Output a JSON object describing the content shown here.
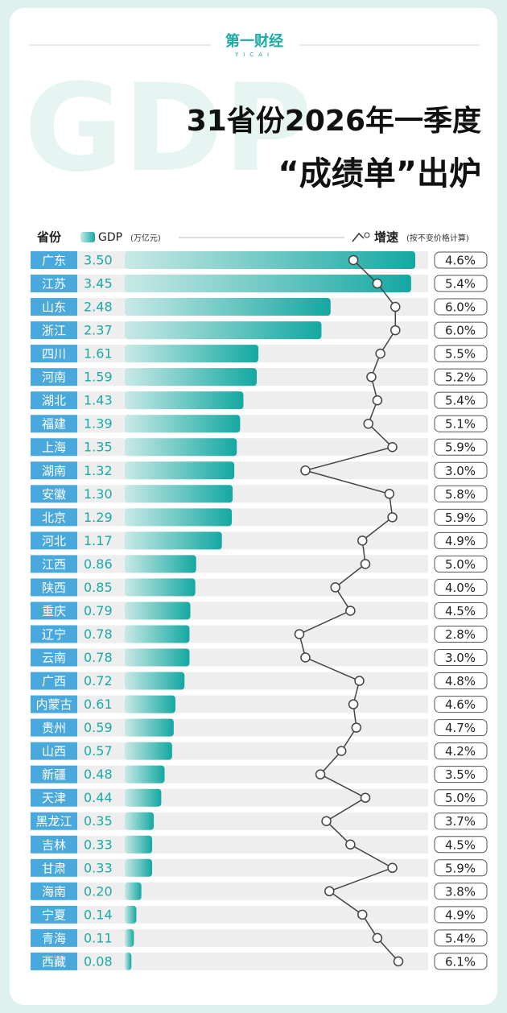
{
  "chart_data": {
    "type": "bar",
    "logo": "第一财经",
    "logo_sub": "YICAI",
    "watermark": "GDP",
    "title": "31省份2026年一季度",
    "subtitle": "“成绩单”出炉",
    "category_header": "省份",
    "categories": [
      "广东",
      "江苏",
      "山东",
      "浙江",
      "四川",
      "河南",
      "湖北",
      "福建",
      "上海",
      "湖南",
      "安徽",
      "北京",
      "河北",
      "江西",
      "陕西",
      "重庆",
      "辽宁",
      "云南",
      "广西",
      "内蒙古",
      "贵州",
      "山西",
      "新疆",
      "天津",
      "黑龙江",
      "吉林",
      "甘肃",
      "海南",
      "宁夏",
      "青海",
      "西藏"
    ],
    "series": [
      {
        "name": "GDP",
        "unit": "(万亿元)",
        "color": "#1aaba5",
        "values": [
          3.5,
          3.45,
          2.48,
          2.37,
          1.61,
          1.59,
          1.43,
          1.39,
          1.35,
          1.32,
          1.3,
          1.29,
          1.17,
          0.86,
          0.85,
          0.79,
          0.78,
          0.78,
          0.72,
          0.61,
          0.59,
          0.57,
          0.48,
          0.44,
          0.35,
          0.33,
          0.33,
          0.2,
          0.14,
          0.11,
          0.08
        ],
        "value_labels": [
          "3.50",
          "3.45",
          "2.48",
          "2.37",
          "1.61",
          "1.59",
          "1.43",
          "1.39",
          "1.35",
          "1.32",
          "1.30",
          "1.29",
          "1.17",
          "0.86",
          "0.85",
          "0.79",
          "0.78",
          "0.78",
          "0.72",
          "0.61",
          "0.59",
          "0.57",
          "0.48",
          "0.44",
          "0.35",
          "0.33",
          "0.33",
          "0.20",
          "0.14",
          "0.11",
          "0.08"
        ]
      },
      {
        "name": "增速",
        "note": "(按不变价格计算)",
        "type": "line",
        "color": "#444444",
        "values": [
          4.6,
          5.4,
          6.0,
          6.0,
          5.5,
          5.2,
          5.4,
          5.1,
          5.9,
          3.0,
          5.8,
          5.9,
          4.9,
          5.0,
          4.0,
          4.5,
          2.8,
          3.0,
          4.8,
          4.6,
          4.7,
          4.2,
          3.5,
          5.0,
          3.7,
          4.5,
          5.9,
          3.8,
          4.9,
          5.4,
          6.1
        ],
        "value_labels": [
          "4.6%",
          "5.4%",
          "6.0%",
          "6.0%",
          "5.5%",
          "5.2%",
          "5.4%",
          "5.1%",
          "5.9%",
          "3.0%",
          "5.8%",
          "5.9%",
          "4.9%",
          "5.0%",
          "4.0%",
          "4.5%",
          "2.8%",
          "3.0%",
          "4.8%",
          "4.6%",
          "4.7%",
          "4.2%",
          "3.5%",
          "5.0%",
          "3.7%",
          "4.5%",
          "5.9%",
          "3.8%",
          "4.9%",
          "5.4%",
          "6.1%"
        ]
      }
    ]
  }
}
